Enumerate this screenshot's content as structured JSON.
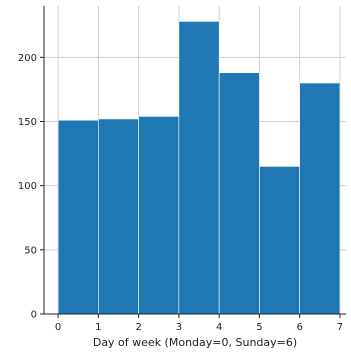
{
  "chart_data": {
    "type": "bar",
    "title": "",
    "xlabel": "Day of week (Monday=0, Sunday=6)",
    "ylabel": "",
    "bins": [
      {
        "start": 0,
        "end": 1,
        "value": 151
      },
      {
        "start": 1,
        "end": 2,
        "value": 152
      },
      {
        "start": 2,
        "end": 3,
        "value": 154
      },
      {
        "start": 3,
        "end": 4,
        "value": 228
      },
      {
        "start": 4,
        "end": 5,
        "value": 188
      },
      {
        "start": 5,
        "end": 6,
        "value": 115
      },
      {
        "start": 6,
        "end": 7,
        "value": 180
      }
    ],
    "xlim": [
      -0.35,
      7.15
    ],
    "ylim": [
      0,
      240
    ],
    "xticks": [
      "0",
      "1",
      "2",
      "3",
      "4",
      "5",
      "6",
      "7"
    ],
    "yticks": [
      "0",
      "50",
      "100",
      "150",
      "200"
    ],
    "grid": true,
    "colors": {
      "bar": "#1f77b4",
      "grid": "#cfcfcf",
      "axis": "#222222"
    }
  }
}
